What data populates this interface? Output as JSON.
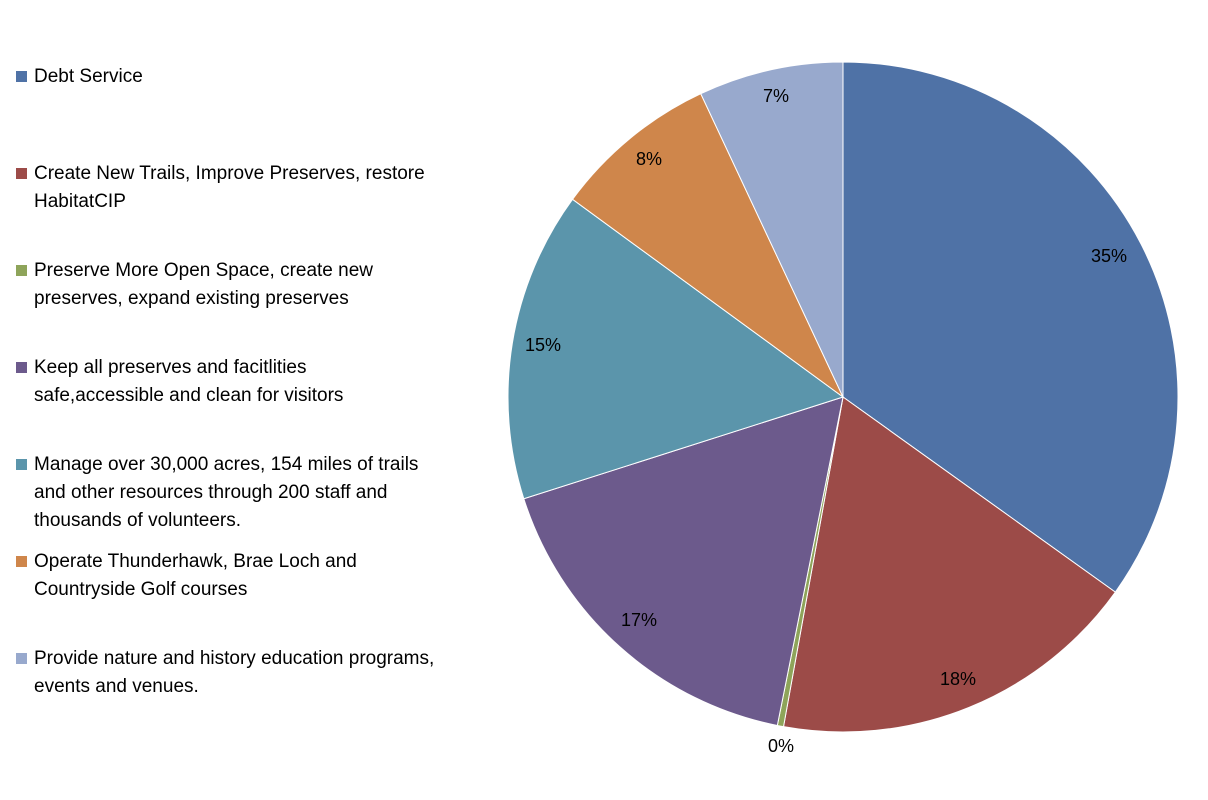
{
  "chart_data": {
    "type": "pie",
    "legend_position": "left",
    "slices": [
      {
        "name": "Debt Service",
        "value": 35,
        "label": "35%",
        "color": "#4f72a6"
      },
      {
        "name": "Create New Trails, Improve Preserves, restore HabitatCIP",
        "value": 18,
        "label": "18%",
        "color": "#9c4b48"
      },
      {
        "name": "Preserve More Open Space, create new preserves, expand existing preserves",
        "value": 0.3,
        "label": "0%",
        "color": "#8ea45a"
      },
      {
        "name": "Keep all preserves and facitlities safe,accessible and clean for visitors",
        "value": 17,
        "label": "17%",
        "color": "#6c5a8c"
      },
      {
        "name": "Manage over 30,000 acres, 154 miles of trails and other resources through 200 staff and thousands of volunteers.",
        "value": 15,
        "label": "15%",
        "color": "#5b95ab"
      },
      {
        "name": "Operate Thunderhawk, Brae Loch and Countryside Golf courses",
        "value": 8,
        "label": "8%",
        "color": "#cf864b"
      },
      {
        "name": "Provide nature and history education programs, events and venues.",
        "value": 7,
        "label": "7%",
        "color": "#98a9cd"
      }
    ]
  }
}
